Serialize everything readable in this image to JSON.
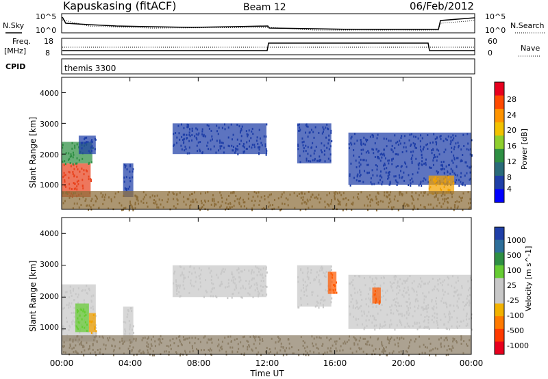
{
  "header": {
    "station": "Kapuskasing (fitACF)",
    "beam": "Beam 12",
    "date": "06/Feb/2012"
  },
  "top_panels": {
    "nsky_label": "N.Sky",
    "nsky_ticks": [
      "10^5",
      "10^0"
    ],
    "nsearch_label": "N.Search",
    "nsearch_ticks": [
      "10^5",
      "10^0"
    ],
    "freq_label_1": "Freq.",
    "freq_label_2": "[MHz]",
    "freq_ticks": [
      "18",
      "8"
    ],
    "nave_label": "Nave",
    "nave_ticks": [
      "60",
      "0"
    ],
    "cpid_label": "CPID",
    "cpid_value": "themis 3300"
  },
  "chart_data": [
    {
      "type": "heatmap",
      "panel": "power",
      "x_unit": "hours UT",
      "xlim": [
        0,
        24
      ],
      "ylim": [
        200,
        4500
      ],
      "ylabel": "Slant Range [km]",
      "yticks": [
        "1000",
        "2000",
        "3000",
        "4000"
      ],
      "colorbar_label": "Power [dB]",
      "colorbar_ticks": [
        "28",
        "24",
        "20",
        "16",
        "12",
        "8",
        "4"
      ],
      "colorbar_colors": [
        "#e8001e",
        "#ff4a00",
        "#ff9400",
        "#f2c200",
        "#8fcf2e",
        "#2e8f43",
        "#2a6b7a",
        "#1f3fa8",
        "#0000ff"
      ],
      "regions": [
        {
          "x0": 0.0,
          "x1": 1.7,
          "y0": 600,
          "y1": 1700,
          "color": "#e8431e"
        },
        {
          "x0": 0.0,
          "x1": 1.8,
          "y0": 1700,
          "y1": 2400,
          "color": "#2e8f43"
        },
        {
          "x0": 1.0,
          "x1": 2.0,
          "y0": 2000,
          "y1": 2600,
          "color": "#1f3fa8"
        },
        {
          "x0": 3.6,
          "x1": 4.2,
          "y0": 600,
          "y1": 1700,
          "color": "#1f3fa8"
        },
        {
          "x0": 6.5,
          "x1": 12.0,
          "y0": 2000,
          "y1": 3000,
          "color": "#1f3fa8"
        },
        {
          "x0": 13.8,
          "x1": 15.8,
          "y0": 1700,
          "y1": 3000,
          "color": "#1f3fa8"
        },
        {
          "x0": 16.8,
          "x1": 24.0,
          "y0": 1000,
          "y1": 2700,
          "color": "#1f3fa8"
        },
        {
          "x0": 21.5,
          "x1": 23.0,
          "y0": 700,
          "y1": 1300,
          "color": "#f2a200"
        },
        {
          "x0": 0.0,
          "x1": 24.0,
          "y0": 200,
          "y1": 800,
          "color": "#8c6d3a"
        }
      ]
    },
    {
      "type": "heatmap",
      "panel": "velocity",
      "x_unit": "hours UT",
      "xlim": [
        0,
        24
      ],
      "ylim": [
        200,
        4500
      ],
      "ylabel": "Slant Range [km]",
      "yticks": [
        "1000",
        "2000",
        "3000",
        "4000"
      ],
      "xlabel": "Time UT",
      "xticks": [
        "00:00",
        "04:00",
        "08:00",
        "12:00",
        "16:00",
        "20:00",
        "00:00"
      ],
      "colorbar_label": "Velocity [m s^-1]",
      "colorbar_ticks": [
        "1000",
        "500",
        "100",
        "25",
        "-25",
        "-100",
        "-500",
        "-1000"
      ],
      "colorbar_colors": [
        "#1f3fa8",
        "#2e6f9a",
        "#2e8f43",
        "#66cc33",
        "#c8c8c8",
        "#c8c8c8",
        "#f2b200",
        "#ff7a00",
        "#ff3a00",
        "#e8001e"
      ],
      "regions": [
        {
          "x0": 0.0,
          "x1": 2.0,
          "y0": 600,
          "y1": 2400,
          "color": "#c8c8c8"
        },
        {
          "x0": 0.8,
          "x1": 1.6,
          "y0": 900,
          "y1": 1800,
          "color": "#66cc33"
        },
        {
          "x0": 1.6,
          "x1": 2.0,
          "y0": 900,
          "y1": 1500,
          "color": "#f2a200"
        },
        {
          "x0": 3.6,
          "x1": 4.2,
          "y0": 600,
          "y1": 1700,
          "color": "#c8c8c8"
        },
        {
          "x0": 6.5,
          "x1": 12.0,
          "y0": 2000,
          "y1": 3000,
          "color": "#c8c8c8"
        },
        {
          "x0": 13.8,
          "x1": 15.8,
          "y0": 1700,
          "y1": 3000,
          "color": "#c8c8c8"
        },
        {
          "x0": 15.6,
          "x1": 16.1,
          "y0": 2100,
          "y1": 2800,
          "color": "#ff5a00"
        },
        {
          "x0": 16.8,
          "x1": 24.0,
          "y0": 1000,
          "y1": 2700,
          "color": "#c8c8c8"
        },
        {
          "x0": 18.2,
          "x1": 18.7,
          "y0": 1800,
          "y1": 2300,
          "color": "#ff5a00"
        },
        {
          "x0": 0.0,
          "x1": 24.0,
          "y0": 200,
          "y1": 800,
          "color": "#8c7e66"
        }
      ]
    }
  ],
  "colors": {
    "axis": "#000000",
    "background": "#ffffff"
  }
}
